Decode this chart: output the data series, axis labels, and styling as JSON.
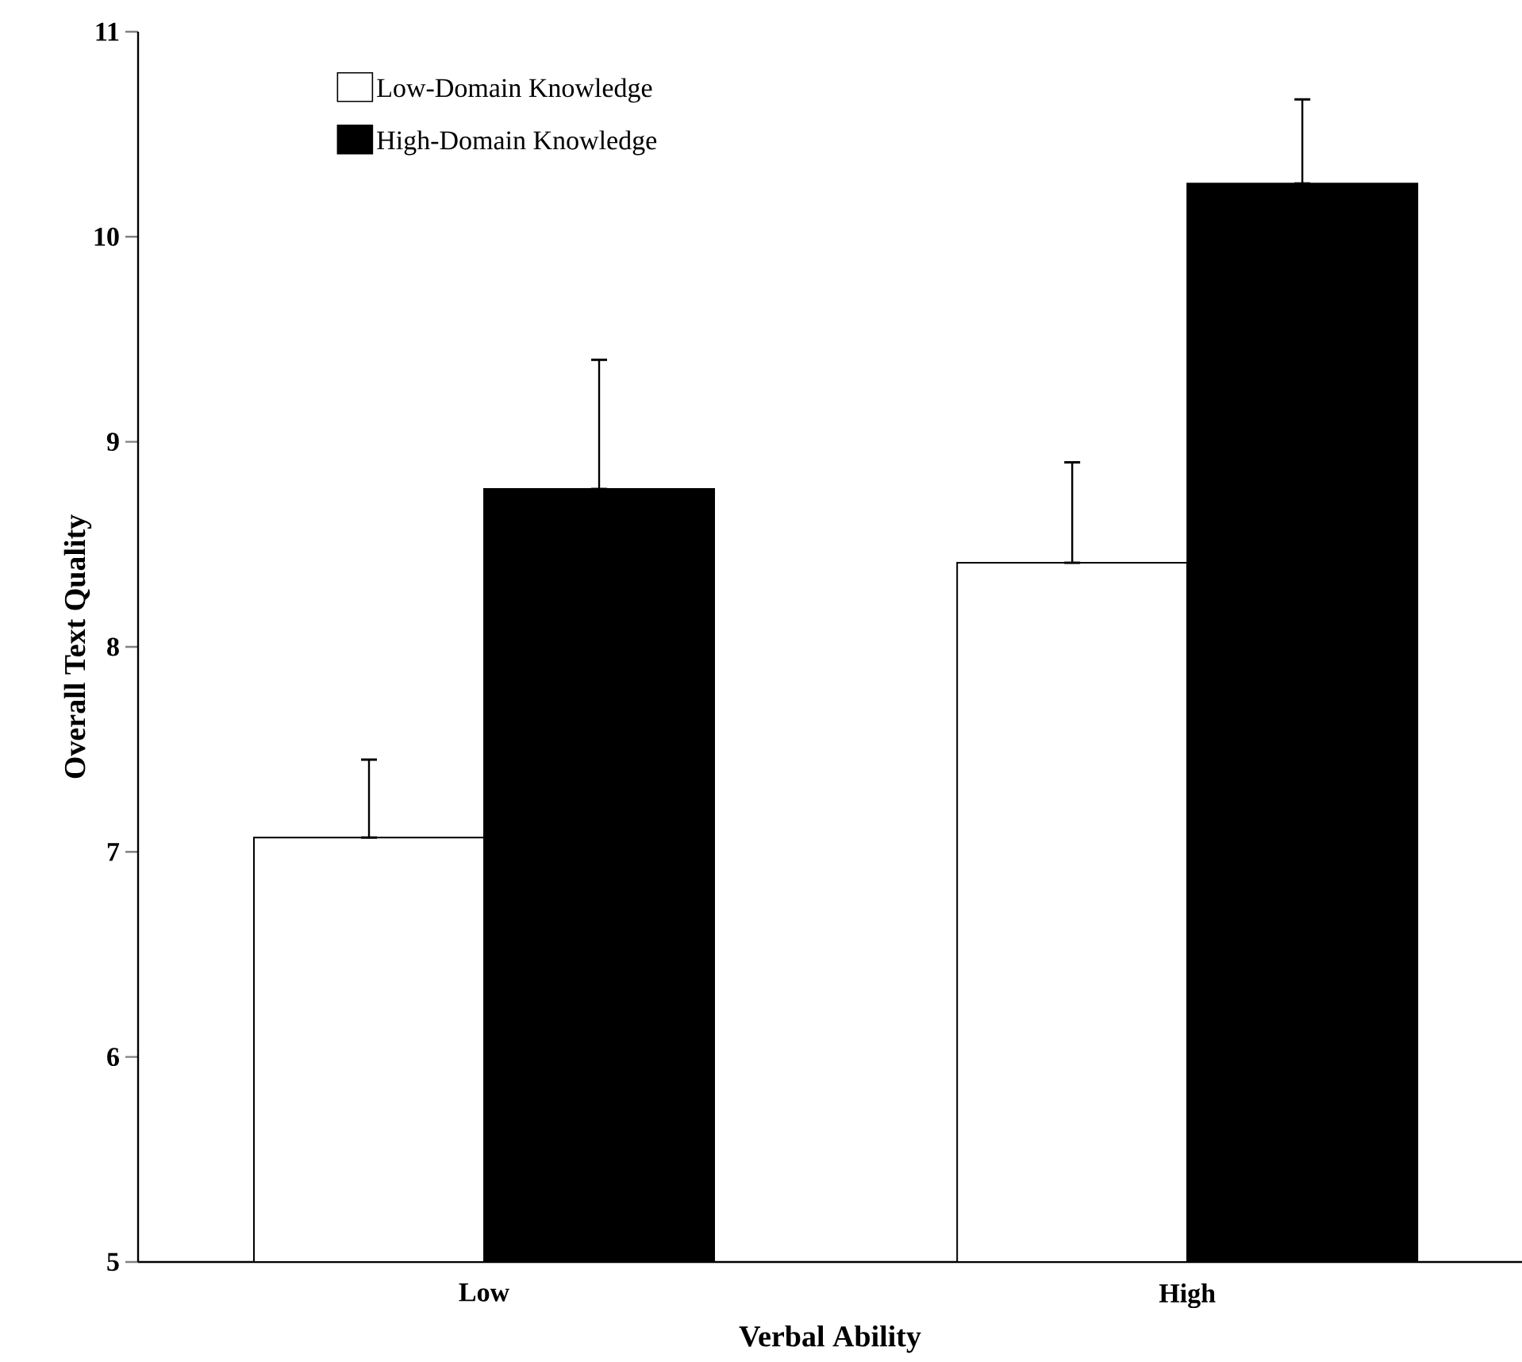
{
  "chart_data": {
    "type": "bar",
    "xlabel": "Verbal Ability",
    "ylabel": "Overall Text Quality",
    "categories": [
      "Low",
      "High"
    ],
    "series": [
      {
        "name": "Low-Domain Knowledge",
        "color": "#ffffff",
        "values": [
          7.07,
          8.41
        ],
        "errors": [
          [
            7.07,
            7.45
          ],
          [
            8.41,
            8.9
          ]
        ]
      },
      {
        "name": "High-Domain Knowledge",
        "color": "#000000",
        "values": [
          8.77,
          10.26
        ],
        "errors": [
          [
            8.77,
            9.4
          ],
          [
            10.26,
            10.67
          ]
        ]
      }
    ],
    "ylim": [
      5,
      11
    ],
    "yticks": [
      5,
      6,
      7,
      8,
      9,
      10,
      11
    ],
    "legend": "top left",
    "grid": false
  }
}
